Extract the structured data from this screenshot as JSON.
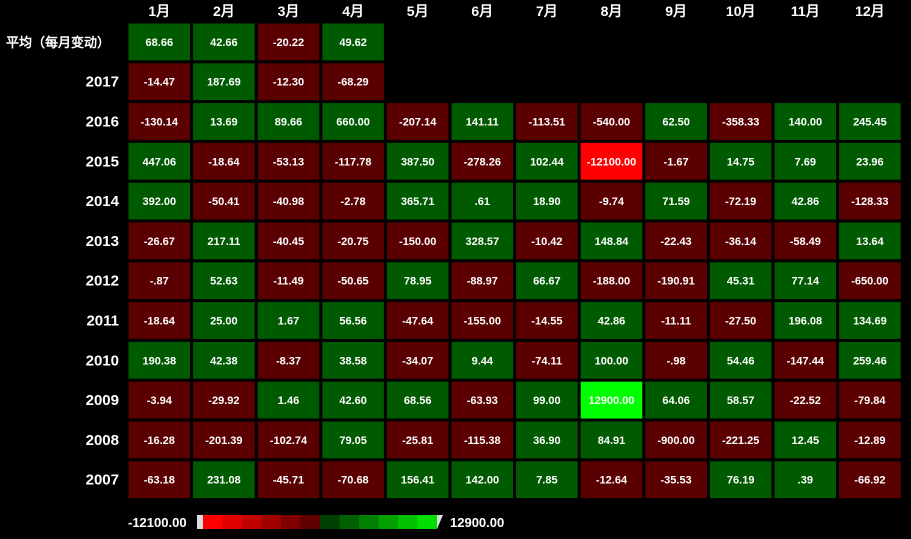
{
  "chart_data": {
    "type": "heatmap",
    "columns": [
      "1月",
      "2月",
      "3月",
      "4月",
      "5月",
      "6月",
      "7月",
      "8月",
      "9月",
      "10月",
      "11月",
      "12月"
    ],
    "rows": [
      {
        "label": "平均（每月变动）",
        "values": [
          "68.66",
          "42.66",
          "-20.22",
          "49.62",
          null,
          null,
          null,
          null,
          null,
          null,
          null,
          null
        ]
      },
      {
        "label": "2017",
        "values": [
          "-14.47",
          "187.69",
          "-12.30",
          "-68.29",
          null,
          null,
          null,
          null,
          null,
          null,
          null,
          null
        ]
      },
      {
        "label": "2016",
        "values": [
          "-130.14",
          "13.69",
          "89.66",
          "660.00",
          "-207.14",
          "141.11",
          "-113.51",
          "-540.00",
          "62.50",
          "-358.33",
          "140.00",
          "245.45"
        ]
      },
      {
        "label": "2015",
        "values": [
          "447.06",
          "-18.64",
          "-53.13",
          "-117.78",
          "387.50",
          "-278.26",
          "102.44",
          "-12100.00",
          "-1.67",
          "14.75",
          "7.69",
          "23.96"
        ]
      },
      {
        "label": "2014",
        "values": [
          "392.00",
          "-50.41",
          "-40.98",
          "-2.78",
          "365.71",
          ".61",
          "18.90",
          "-9.74",
          "71.59",
          "-72.19",
          "42.86",
          "-128.33"
        ]
      },
      {
        "label": "2013",
        "values": [
          "-26.67",
          "217.11",
          "-40.45",
          "-20.75",
          "-150.00",
          "328.57",
          "-10.42",
          "148.84",
          "-22.43",
          "-36.14",
          "-58.49",
          "13.64"
        ]
      },
      {
        "label": "2012",
        "values": [
          "-.87",
          "52.63",
          "-11.49",
          "-50.65",
          "78.95",
          "-88.97",
          "66.67",
          "-188.00",
          "-190.91",
          "45.31",
          "77.14",
          "-650.00"
        ]
      },
      {
        "label": "2011",
        "values": [
          "-18.64",
          "25.00",
          "1.67",
          "56.56",
          "-47.64",
          "-155.00",
          "-14.55",
          "42.86",
          "-11.11",
          "-27.50",
          "196.08",
          "134.69"
        ]
      },
      {
        "label": "2010",
        "values": [
          "190.38",
          "42.38",
          "-8.37",
          "38.58",
          "-34.07",
          "9.44",
          "-74.11",
          "100.00",
          "-.98",
          "54.46",
          "-147.44",
          "259.46"
        ]
      },
      {
        "label": "2009",
        "values": [
          "-3.94",
          "-29.92",
          "1.46",
          "42.60",
          "68.56",
          "-63.93",
          "99.00",
          "12900.00",
          "64.06",
          "58.57",
          "-22.52",
          "-79.84"
        ]
      },
      {
        "label": "2008",
        "values": [
          "-16.28",
          "-201.39",
          "-102.74",
          "79.05",
          "-25.81",
          "-115.38",
          "36.90",
          "84.91",
          "-900.00",
          "-221.25",
          "12.45",
          "-12.89"
        ]
      },
      {
        "label": "2007",
        "values": [
          "-63.18",
          "231.08",
          "-45.71",
          "-70.68",
          "156.41",
          "142.00",
          "7.85",
          "-12.64",
          "-35.53",
          "76.19",
          ".39",
          "-66.92"
        ]
      }
    ],
    "scale": {
      "min": "-12100.00",
      "max": "12900.00"
    },
    "colors": {
      "negative": "#5a0000",
      "positive": "#005a00",
      "extreme_negative": "#ff0000",
      "extreme_positive": "#00ff00",
      "background": "#000000"
    },
    "legend": {
      "placement": "bottom-left"
    }
  }
}
